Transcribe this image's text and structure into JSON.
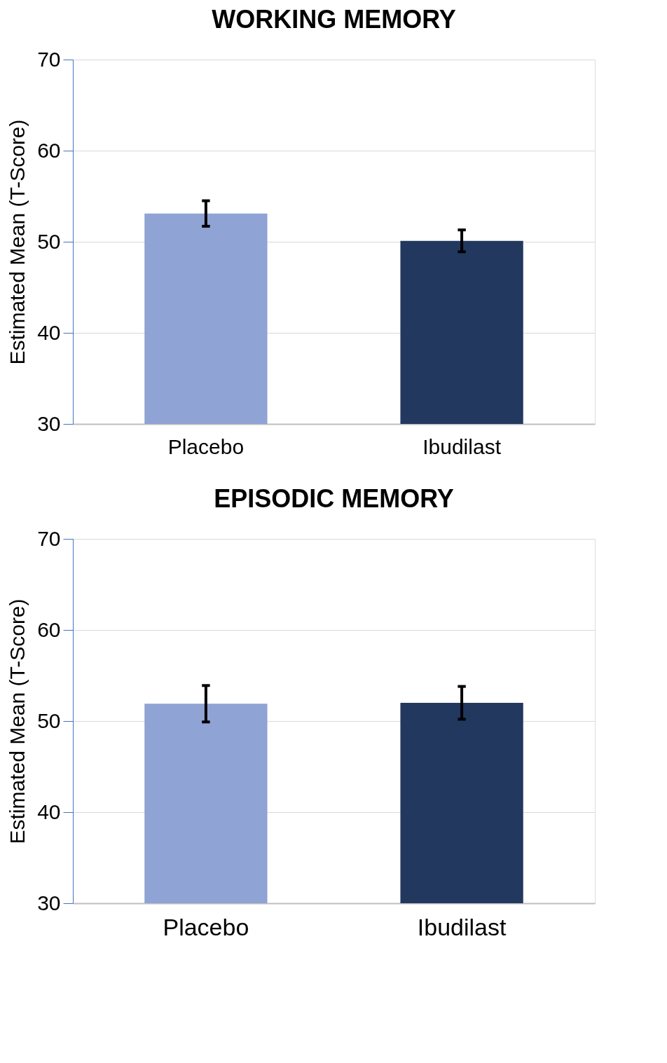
{
  "chart_data": [
    {
      "type": "bar",
      "title": "WORKING MEMORY",
      "ylabel": "Estimated Mean (T-Score)",
      "categories": [
        "Placebo",
        "Ibudilast"
      ],
      "values": [
        53.1,
        50.1
      ],
      "errors": [
        1.4,
        1.2
      ],
      "colors": [
        "#8fa3d4",
        "#22385f"
      ],
      "ylim": [
        30,
        70
      ],
      "yticks": [
        30,
        40,
        50,
        60,
        70
      ],
      "grid": "y"
    },
    {
      "type": "bar",
      "title": "EPISODIC MEMORY",
      "ylabel": "Estimated Mean (T-Score)",
      "categories": [
        "Placebo",
        "Ibudilast"
      ],
      "values": [
        51.9,
        52.0
      ],
      "errors": [
        2.0,
        1.8
      ],
      "colors": [
        "#8fa3d4",
        "#22385f"
      ],
      "ylim": [
        30,
        70
      ],
      "yticks": [
        30,
        40,
        50,
        60,
        70
      ],
      "grid": "y"
    }
  ]
}
